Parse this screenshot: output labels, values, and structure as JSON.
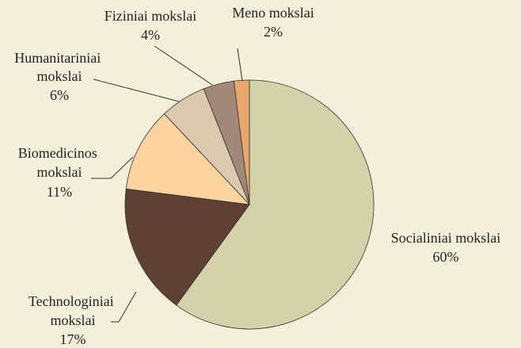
{
  "chart_data": {
    "type": "pie",
    "categories": [
      "Socialiniai mokslai",
      "Technologiniai mokslai",
      "Biomedicinos mokslai",
      "Humanitariniai mokslai",
      "Fiziniai mokslai",
      "Meno mokslai"
    ],
    "values": [
      60,
      17,
      11,
      6,
      4,
      2
    ],
    "value_labels": [
      "60%",
      "17%",
      "11%",
      "6%",
      "4%",
      "2%"
    ],
    "colors": [
      "#d5d1a8",
      "#5e4034",
      "#fdd3a0",
      "#dac9ae",
      "#a18879",
      "#e8a76c"
    ]
  }
}
